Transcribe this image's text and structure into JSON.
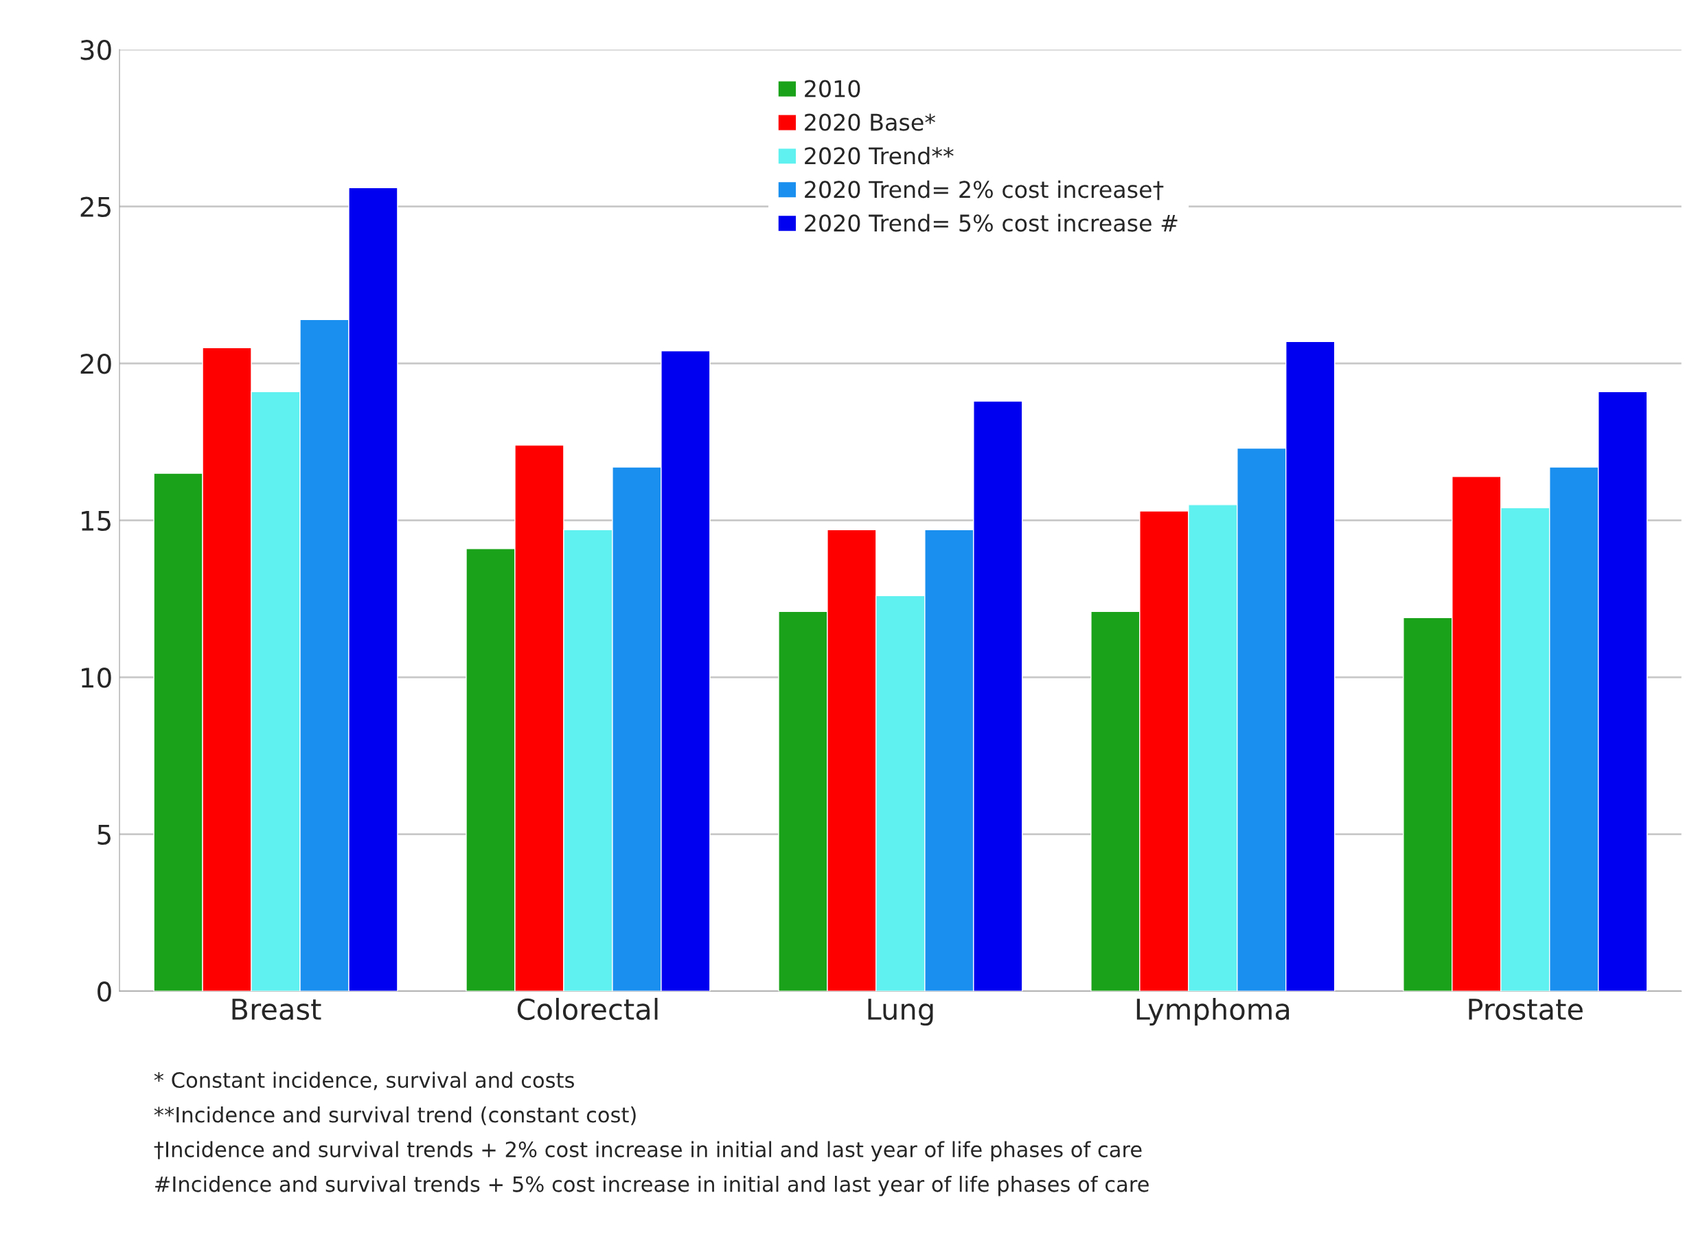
{
  "chart_data": {
    "type": "bar",
    "categories": [
      "Breast",
      "Colorectal",
      "Lung",
      "Lymphoma",
      "Prostate"
    ],
    "series": [
      {
        "name": "2010",
        "color": "#1aa31a",
        "values": [
          16.5,
          14.1,
          12.1,
          12.1,
          11.9
        ]
      },
      {
        "name": "2020 Base*",
        "color": "#ff0000",
        "values": [
          20.5,
          17.4,
          14.7,
          15.3,
          16.4
        ]
      },
      {
        "name": "2020 Trend**",
        "color": "#5ff0f0",
        "values": [
          19.1,
          14.7,
          12.6,
          15.5,
          15.4
        ]
      },
      {
        "name": "2020 Trend= 2% cost increase†",
        "color": "#1a8ff0",
        "values": [
          21.4,
          16.7,
          14.7,
          17.3,
          16.7
        ]
      },
      {
        "name": "2020 Trend= 5% cost increase #",
        "color": "#0000f0",
        "values": [
          25.6,
          20.4,
          18.8,
          20.7,
          19.1
        ]
      }
    ],
    "ylim": [
      0,
      30
    ],
    "yticks": [
      0,
      5,
      10,
      15,
      20,
      25,
      30
    ],
    "grid": "y",
    "legend": "top",
    "annotations": [
      "* Constant incidence, survival and costs",
      "**Incidence and survival trend (constant cost)",
      "†Incidence and survival trends + 2% cost increase in initial and last year of life phases of care",
      "#Incidence and survival trends + 5% cost increase in initial and last year of life phases of care"
    ]
  }
}
